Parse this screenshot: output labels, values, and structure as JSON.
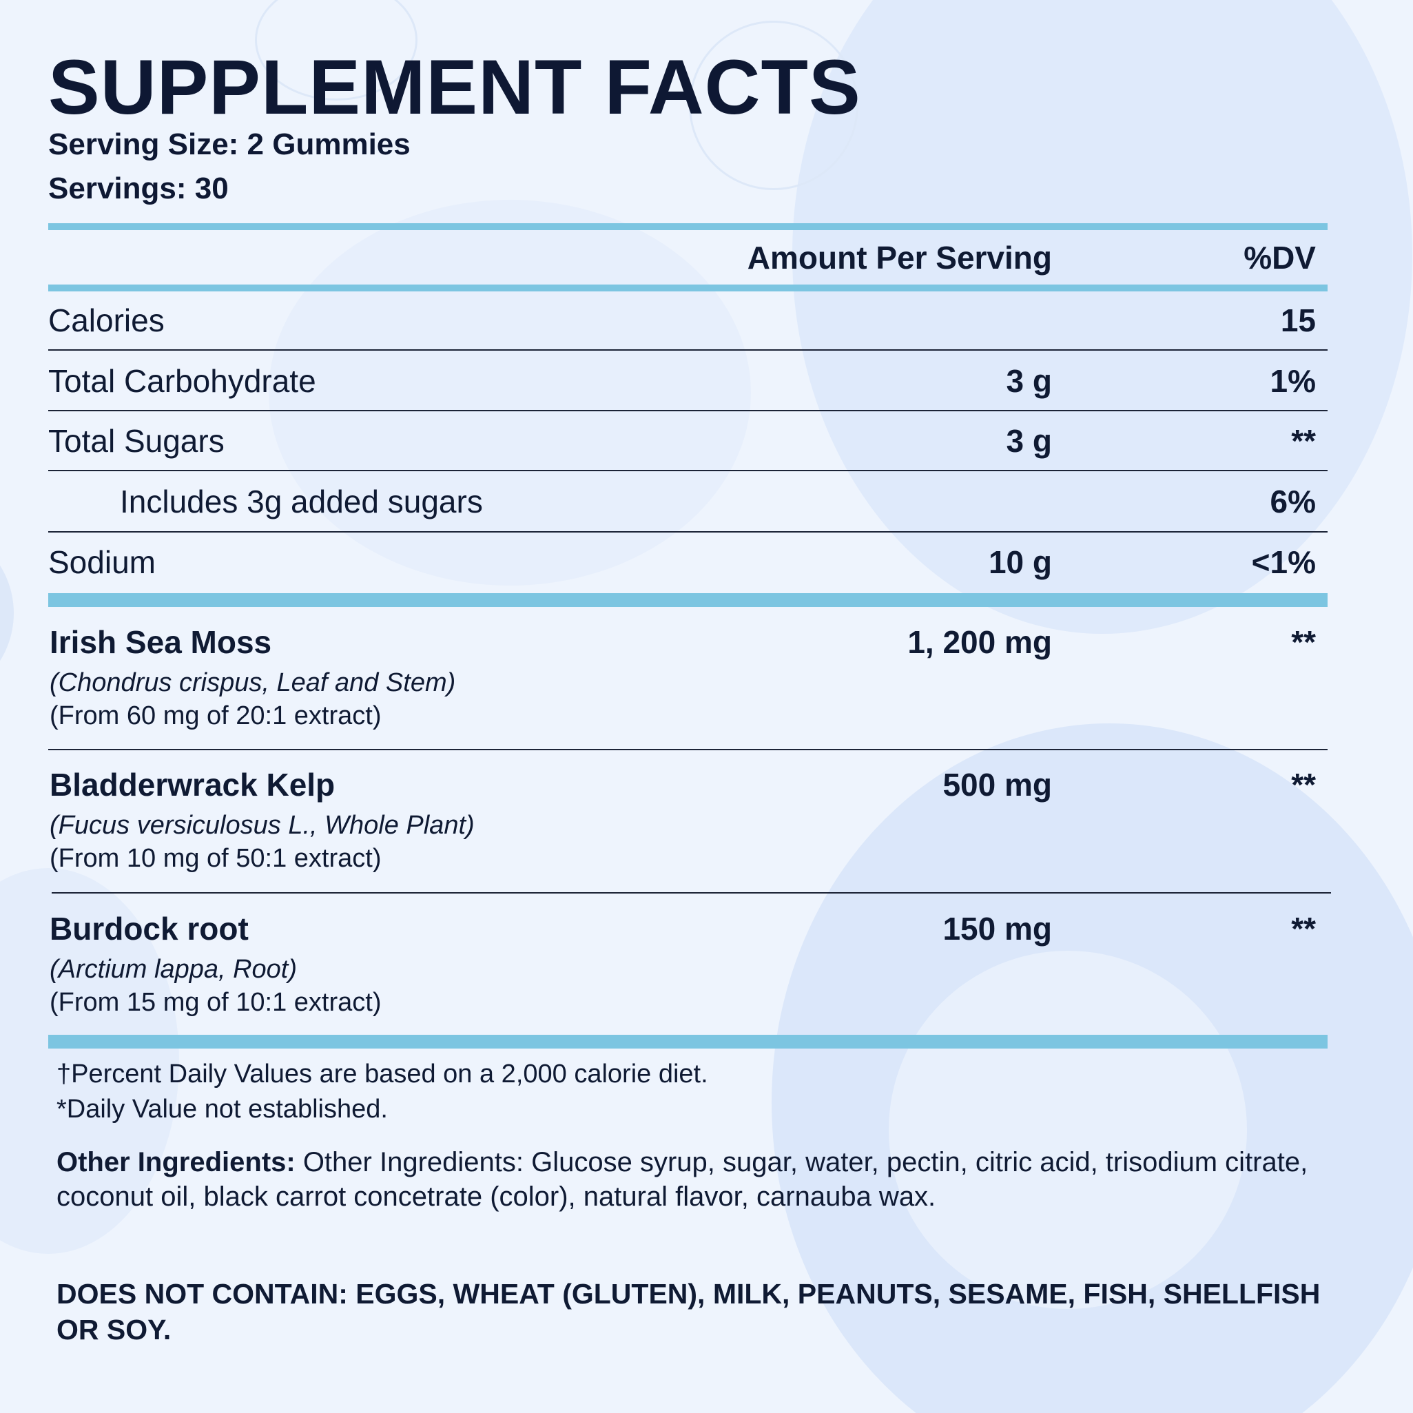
{
  "title": "SUPPLEMENT FACTS",
  "serving_size": "Serving Size: 2 Gummies",
  "servings": "Servings: 30",
  "header": {
    "amount": "Amount Per Serving",
    "dv": "%DV"
  },
  "nutrients": [
    {
      "label": "Calories",
      "amount": "",
      "dv": "15"
    },
    {
      "label": "Total Carbohydrate",
      "amount": "3 g",
      "dv": "1%"
    },
    {
      "label": "Total Sugars",
      "amount": "3 g",
      "dv": "**"
    },
    {
      "label": "Includes 3g added sugars",
      "amount": "",
      "dv": "6%"
    },
    {
      "label": "Sodium",
      "amount": "10 g",
      "dv": "<1%"
    }
  ],
  "ingredients": [
    {
      "name": "Irish Sea Moss",
      "latin": "(Chondrus crispus, Leaf and Stem)",
      "extract": "(From 60 mg of 20:1 extract)",
      "amount": "1, 200 mg",
      "dv": "**"
    },
    {
      "name": "Bladderwrack Kelp",
      "latin": "(Fucus versiculosus L., Whole Plant)",
      "extract": "(From 10 mg of 50:1 extract)",
      "amount": "500 mg",
      "dv": "**"
    },
    {
      "name": "Burdock root",
      "latin": "(Arctium lappa, Root)",
      "extract": "(From 15 mg of 10:1 extract)",
      "amount": "150 mg",
      "dv": "**"
    }
  ],
  "footnotes": [
    "†Percent Daily Values are based on a 2,000 calorie diet.",
    "*Daily Value not established."
  ],
  "other_ingredients": {
    "label": "Other Ingredients:",
    "text": " Other Ingredients: Glucose syrup, sugar, water, pectin, citric acid, trisodium citrate, coconut oil, black carrot concetrate (color), natural flavor, carnauba wax."
  },
  "allergens": "DOES NOT CONTAIN: EGGS, WHEAT (GLUTEN), MILK, PEANUTS, SESAME, FISH, SHELLFISH OR SOY.",
  "colors": {
    "accent_rule": "#7cc5e1",
    "text": "#0e1833",
    "background": "#eef4fd"
  }
}
